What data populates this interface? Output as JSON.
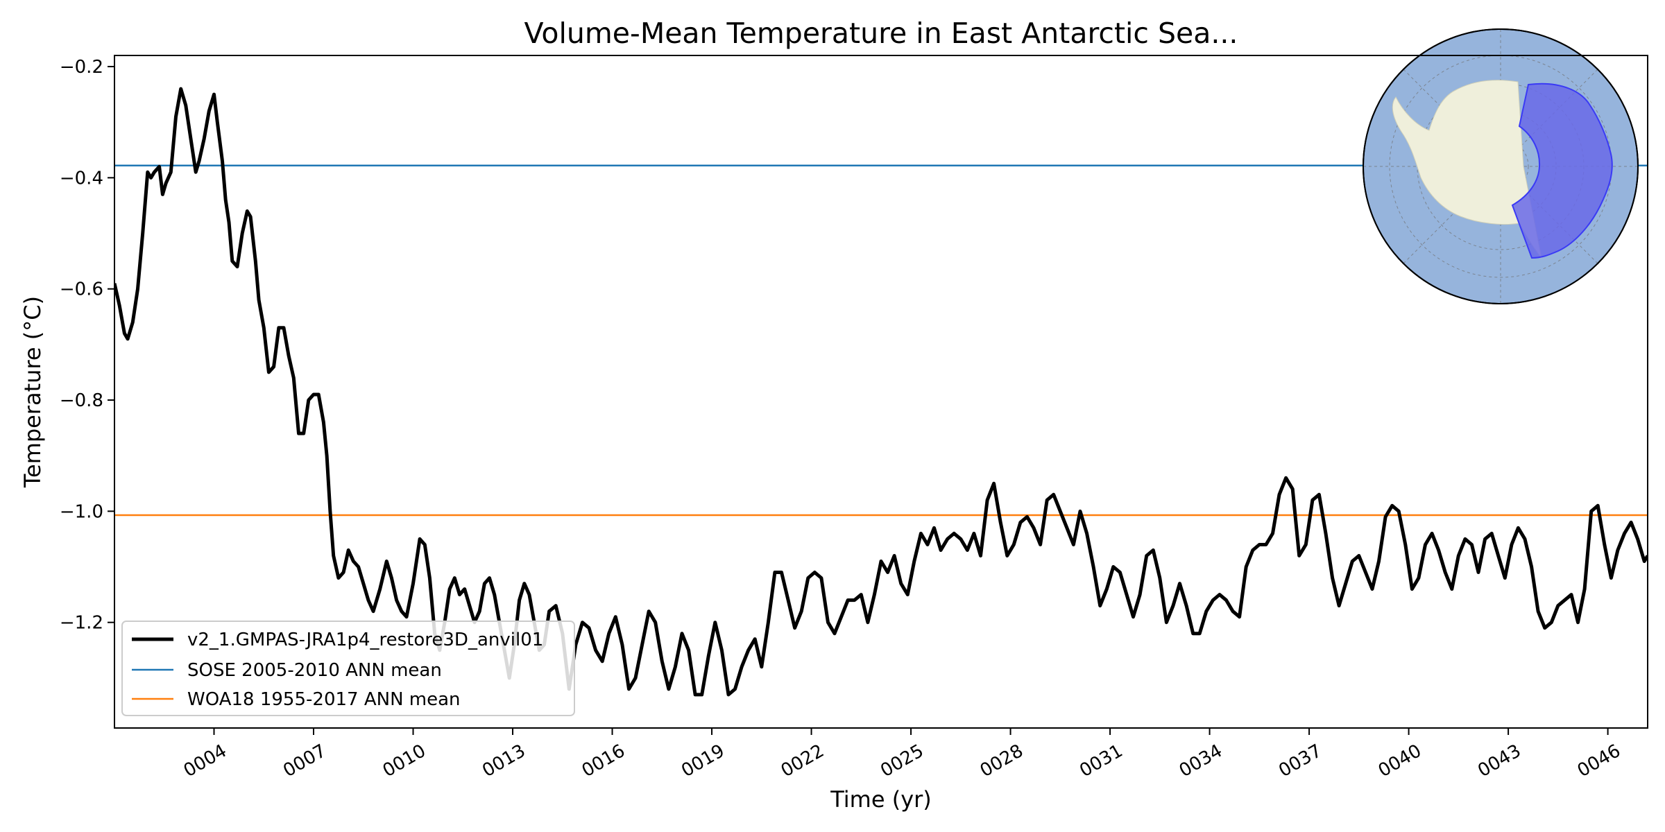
{
  "chart_data": {
    "type": "line",
    "title": "Volume-Mean Temperature in East Antarctic Sea...",
    "xlabel": "Time (yr)",
    "ylabel": "Temperature ($^\\circ$C)",
    "ylabel_display": "Temperature (°C)",
    "xlim": [
      1.0,
      47.2
    ],
    "ylim": [
      -1.39,
      -0.18
    ],
    "x_ticks": [
      4,
      7,
      10,
      13,
      16,
      19,
      22,
      25,
      28,
      31,
      34,
      37,
      40,
      43,
      46
    ],
    "x_tick_labels": [
      "0004",
      "0007",
      "0010",
      "0013",
      "0016",
      "0019",
      "0022",
      "0025",
      "0028",
      "0031",
      "0034",
      "0037",
      "0040",
      "0043",
      "0046"
    ],
    "y_ticks": [
      -1.2,
      -1.0,
      -0.8,
      -0.6,
      -0.4,
      -0.2
    ],
    "y_tick_labels": [
      "−1.2",
      "−1.0",
      "−0.8",
      "−0.6",
      "−0.4",
      "−0.2"
    ],
    "grid": false,
    "legend_position": "lower-left",
    "series": [
      {
        "name": "v2_1.GMPAS-JRA1p4_restore3D_anvil01",
        "color": "#000000",
        "x": [
          1.0,
          1.15,
          1.3,
          1.4,
          1.55,
          1.7,
          1.85,
          2.0,
          2.1,
          2.2,
          2.35,
          2.45,
          2.55,
          2.7,
          2.85,
          3.0,
          3.15,
          3.3,
          3.45,
          3.55,
          3.7,
          3.85,
          4.0,
          4.1,
          4.25,
          4.35,
          4.45,
          4.55,
          4.7,
          4.85,
          5.0,
          5.1,
          5.25,
          5.35,
          5.5,
          5.65,
          5.8,
          5.95,
          6.1,
          6.25,
          6.4,
          6.55,
          6.7,
          6.85,
          7.0,
          7.15,
          7.3,
          7.4,
          7.5,
          7.6,
          7.75,
          7.9,
          8.05,
          8.2,
          8.35,
          8.5,
          8.65,
          8.8,
          9.0,
          9.2,
          9.35,
          9.5,
          9.65,
          9.8,
          10.0,
          10.2,
          10.35,
          10.5,
          10.65,
          10.8,
          10.95,
          11.1,
          11.25,
          11.4,
          11.55,
          11.7,
          11.85,
          12.0,
          12.15,
          12.3,
          12.45,
          12.6,
          12.75,
          12.9,
          13.05,
          13.2,
          13.35,
          13.5,
          13.65,
          13.8,
          13.95,
          14.1,
          14.3,
          14.5,
          14.7,
          14.9,
          15.1,
          15.3,
          15.5,
          15.7,
          15.9,
          16.1,
          16.3,
          16.5,
          16.7,
          16.9,
          17.1,
          17.3,
          17.5,
          17.7,
          17.9,
          18.1,
          18.3,
          18.5,
          18.7,
          18.9,
          19.1,
          19.3,
          19.5,
          19.7,
          19.9,
          20.1,
          20.3,
          20.5,
          20.7,
          20.9,
          21.1,
          21.3,
          21.5,
          21.7,
          21.9,
          22.1,
          22.3,
          22.5,
          22.7,
          22.9,
          23.1,
          23.3,
          23.5,
          23.7,
          23.9,
          24.1,
          24.3,
          24.5,
          24.7,
          24.9,
          25.1,
          25.3,
          25.5,
          25.7,
          25.9,
          26.1,
          26.3,
          26.5,
          26.7,
          26.9,
          27.1,
          27.3,
          27.5,
          27.7,
          27.9,
          28.1,
          28.3,
          28.5,
          28.7,
          28.9,
          29.1,
          29.3,
          29.5,
          29.7,
          29.9,
          30.1,
          30.3,
          30.5,
          30.7,
          30.9,
          31.1,
          31.3,
          31.5,
          31.7,
          31.9,
          32.1,
          32.3,
          32.5,
          32.7,
          32.9,
          33.1,
          33.3,
          33.5,
          33.7,
          33.9,
          34.1,
          34.3,
          34.5,
          34.7,
          34.9,
          35.1,
          35.3,
          35.5,
          35.7,
          35.9,
          36.1,
          36.3,
          36.5,
          36.7,
          36.9,
          37.1,
          37.3,
          37.5,
          37.7,
          37.9,
          38.1,
          38.3,
          38.5,
          38.7,
          38.9,
          39.1,
          39.3,
          39.5,
          39.7,
          39.9,
          40.1,
          40.3,
          40.5,
          40.7,
          40.9,
          41.1,
          41.3,
          41.5,
          41.7,
          41.9,
          42.1,
          42.3,
          42.5,
          42.7,
          42.9,
          43.1,
          43.3,
          43.5,
          43.7,
          43.9,
          44.1,
          44.3,
          44.5,
          44.7,
          44.9,
          45.1,
          45.3,
          45.5,
          45.7,
          45.9,
          46.1,
          46.3,
          46.5,
          46.7,
          46.9,
          47.1,
          47.2
        ],
        "y": [
          -0.59,
          -0.63,
          -0.68,
          -0.69,
          -0.66,
          -0.6,
          -0.5,
          -0.39,
          -0.4,
          -0.39,
          -0.38,
          -0.43,
          -0.41,
          -0.39,
          -0.29,
          -0.24,
          -0.27,
          -0.33,
          -0.39,
          -0.37,
          -0.33,
          -0.28,
          -0.25,
          -0.3,
          -0.37,
          -0.44,
          -0.48,
          -0.55,
          -0.56,
          -0.5,
          -0.46,
          -0.47,
          -0.55,
          -0.62,
          -0.67,
          -0.75,
          -0.74,
          -0.67,
          -0.67,
          -0.72,
          -0.76,
          -0.86,
          -0.86,
          -0.8,
          -0.79,
          -0.79,
          -0.84,
          -0.9,
          -1.0,
          -1.08,
          -1.12,
          -1.11,
          -1.07,
          -1.09,
          -1.1,
          -1.13,
          -1.16,
          -1.18,
          -1.14,
          -1.09,
          -1.12,
          -1.16,
          -1.18,
          -1.19,
          -1.13,
          -1.05,
          -1.06,
          -1.12,
          -1.22,
          -1.25,
          -1.2,
          -1.14,
          -1.12,
          -1.15,
          -1.14,
          -1.17,
          -1.2,
          -1.18,
          -1.13,
          -1.12,
          -1.15,
          -1.2,
          -1.25,
          -1.3,
          -1.24,
          -1.16,
          -1.13,
          -1.15,
          -1.2,
          -1.25,
          -1.24,
          -1.18,
          -1.17,
          -1.22,
          -1.32,
          -1.24,
          -1.2,
          -1.21,
          -1.25,
          -1.27,
          -1.22,
          -1.19,
          -1.24,
          -1.32,
          -1.3,
          -1.24,
          -1.18,
          -1.2,
          -1.27,
          -1.32,
          -1.28,
          -1.22,
          -1.25,
          -1.33,
          -1.33,
          -1.26,
          -1.2,
          -1.25,
          -1.33,
          -1.32,
          -1.28,
          -1.25,
          -1.23,
          -1.28,
          -1.2,
          -1.11,
          -1.11,
          -1.16,
          -1.21,
          -1.18,
          -1.12,
          -1.11,
          -1.12,
          -1.2,
          -1.22,
          -1.19,
          -1.16,
          -1.16,
          -1.15,
          -1.2,
          -1.15,
          -1.09,
          -1.11,
          -1.08,
          -1.13,
          -1.15,
          -1.09,
          -1.04,
          -1.06,
          -1.03,
          -1.07,
          -1.05,
          -1.04,
          -1.05,
          -1.07,
          -1.04,
          -1.08,
          -0.98,
          -0.95,
          -1.02,
          -1.08,
          -1.06,
          -1.02,
          -1.01,
          -1.03,
          -1.06,
          -0.98,
          -0.97,
          -1.0,
          -1.03,
          -1.06,
          -1.0,
          -1.04,
          -1.1,
          -1.17,
          -1.14,
          -1.1,
          -1.11,
          -1.15,
          -1.19,
          -1.15,
          -1.08,
          -1.07,
          -1.12,
          -1.2,
          -1.17,
          -1.13,
          -1.17,
          -1.22,
          -1.22,
          -1.18,
          -1.16,
          -1.15,
          -1.16,
          -1.18,
          -1.19,
          -1.1,
          -1.07,
          -1.06,
          -1.06,
          -1.04,
          -0.97,
          -0.94,
          -0.96,
          -1.08,
          -1.06,
          -0.98,
          -0.97,
          -1.04,
          -1.12,
          -1.17,
          -1.13,
          -1.09,
          -1.08,
          -1.11,
          -1.14,
          -1.09,
          -1.01,
          -0.99,
          -1.0,
          -1.06,
          -1.14,
          -1.12,
          -1.06,
          -1.04,
          -1.07,
          -1.11,
          -1.14,
          -1.08,
          -1.05,
          -1.06,
          -1.11,
          -1.05,
          -1.04,
          -1.08,
          -1.12,
          -1.06,
          -1.03,
          -1.05,
          -1.1,
          -1.18,
          -1.21,
          -1.2,
          -1.17,
          -1.16,
          -1.15,
          -1.2,
          -1.14,
          -1.0,
          -0.99,
          -1.06,
          -1.12,
          -1.07,
          -1.04,
          -1.02,
          -1.05,
          -1.09,
          -1.08
        ]
      },
      {
        "name": "SOSE 2005-2010 ANN mean",
        "color": "#1f77b4",
        "x": [
          1.0,
          47.2
        ],
        "y": [
          -0.378,
          -0.378
        ]
      },
      {
        "name": "WOA18 1955-2017 ANN mean",
        "color": "#ff7f0e",
        "x": [
          1.0,
          47.2
        ],
        "y": [
          -1.007,
          -1.007
        ]
      }
    ]
  },
  "inset_map": {
    "ocean_color": "#96b4dc",
    "land_color": "#efefdb",
    "region_color": "#6a6ae8"
  }
}
